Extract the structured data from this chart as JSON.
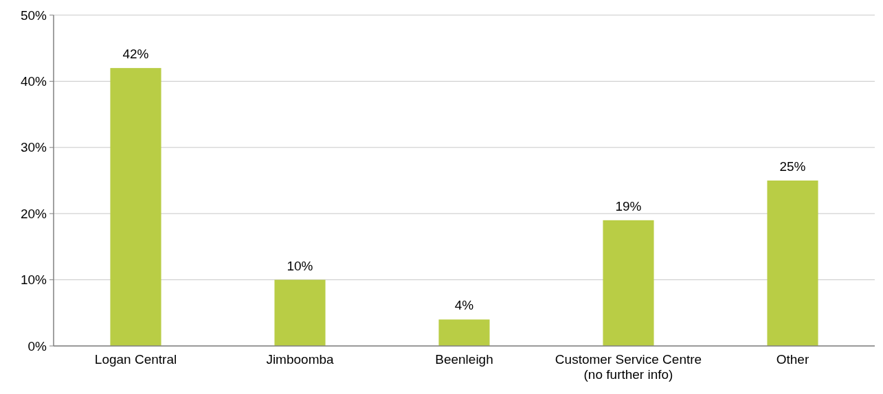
{
  "chart_data": {
    "type": "bar",
    "categories": [
      "Logan Central",
      "Jimboomba",
      "Beenleigh",
      "Customer Service Centre (no further info)",
      "Other"
    ],
    "values": [
      42,
      10,
      4,
      19,
      25
    ],
    "value_labels": [
      "42%",
      "10%",
      "4%",
      "19%",
      "25%"
    ],
    "color": "#b9cd45",
    "ylim": [
      0,
      50
    ],
    "yticks": [
      {
        "value": 0,
        "label": "0%"
      },
      {
        "value": 10,
        "label": "10%"
      },
      {
        "value": 20,
        "label": "20%"
      },
      {
        "value": 30,
        "label": "30%"
      },
      {
        "value": 40,
        "label": "40%"
      },
      {
        "value": 50,
        "label": "50%"
      }
    ],
    "grid": "y"
  }
}
